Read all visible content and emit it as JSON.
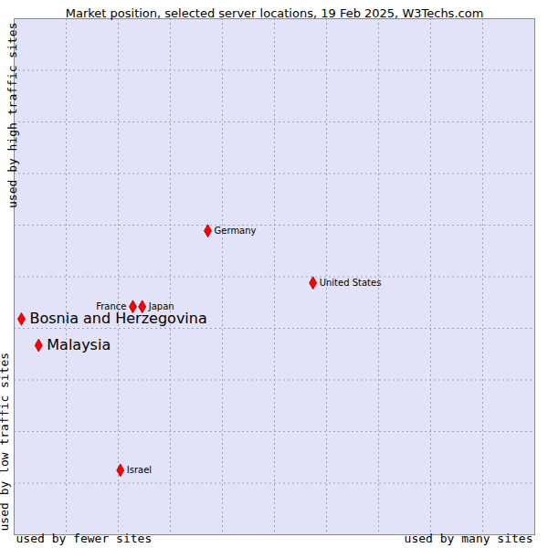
{
  "chart_data": {
    "type": "scatter",
    "title": "Market position, selected server locations, 19 Feb 2025, W3Techs.com",
    "x_axis_labels": {
      "low": "used by fewer sites",
      "high": "used by many sites"
    },
    "y_axis_labels": {
      "low": "used by low traffic sites",
      "high": "used by high traffic sites"
    },
    "points": [
      {
        "label": "Bosnia and Herzegovina",
        "x": 0.14,
        "y": 4.18,
        "emphasis": true
      },
      {
        "label": "Malaysia",
        "x": 0.47,
        "y": 3.67,
        "emphasis": true
      },
      {
        "label": "Germany",
        "x": 3.72,
        "y": 5.89,
        "emphasis": false
      },
      {
        "label": "United States",
        "x": 5.74,
        "y": 4.88,
        "emphasis": false
      },
      {
        "label": "France",
        "x": 2.28,
        "y": 4.42,
        "emphasis": false
      },
      {
        "label": "Japan",
        "x": 2.46,
        "y": 4.42,
        "emphasis": false
      },
      {
        "label": "Israel",
        "x": 2.04,
        "y": 1.25,
        "emphasis": false
      }
    ],
    "xlim": [
      0,
      10
    ],
    "ylim": [
      0,
      10
    ],
    "xticks": [
      0,
      1,
      2,
      3,
      4,
      5,
      6,
      7,
      8,
      9,
      10
    ],
    "yticks": [
      0,
      1,
      2,
      3,
      4,
      5,
      6,
      7,
      8,
      9,
      10
    ],
    "grid": true,
    "tick_labels": false,
    "color": "#ff0000",
    "marker": "diamond"
  }
}
